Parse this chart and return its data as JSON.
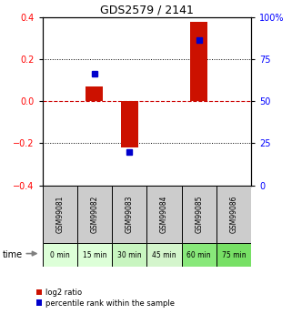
{
  "title": "GDS2579 / 2141",
  "samples": [
    "GSM99081",
    "GSM99082",
    "GSM99083",
    "GSM99084",
    "GSM99085",
    "GSM99086"
  ],
  "time_labels": [
    "0 min",
    "15 min",
    "30 min",
    "45 min",
    "60 min",
    "75 min"
  ],
  "time_colors": [
    "#ddffd8",
    "#ddffd8",
    "#c8f5c0",
    "#d4f5cc",
    "#88e87a",
    "#77e065"
  ],
  "log2_ratio": [
    0.0,
    0.07,
    -0.22,
    0.0,
    0.38,
    0.0
  ],
  "percentile_rank_left": [
    null,
    0.13,
    -0.24,
    null,
    0.29,
    null
  ],
  "ylim_left": [
    -0.4,
    0.4
  ],
  "ylim_right": [
    0,
    100
  ],
  "yticks_left": [
    -0.4,
    -0.2,
    0.0,
    0.2,
    0.4
  ],
  "yticks_right": [
    0,
    25,
    50,
    75,
    100
  ],
  "bar_color": "#cc1100",
  "percentile_color": "#0000cc",
  "zero_line_color": "#cc0000",
  "grid_color": "#000000",
  "bg_color": "#ffffff",
  "sample_box_color": "#cccccc",
  "legend_bar_label": "log2 ratio",
  "legend_pct_label": "percentile rank within the sample",
  "time_arrow_label": "time"
}
